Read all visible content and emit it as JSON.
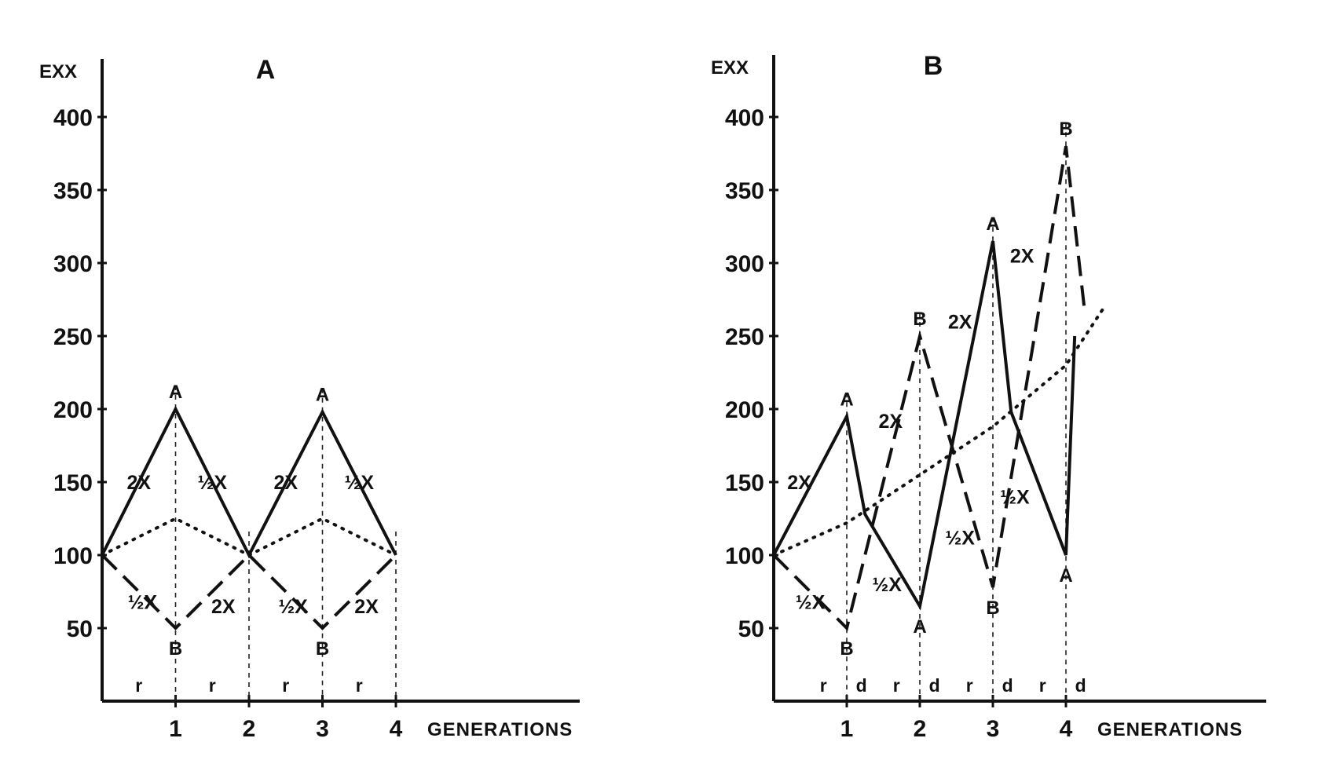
{
  "chart_data": [
    {
      "type": "line",
      "title": "A",
      "ylabel": "EXX",
      "xlabel": "GENERATIONS",
      "ylim": [
        0,
        400
      ],
      "y_ticks": [
        "400",
        "350",
        "300",
        "250",
        "200",
        "150",
        "100",
        "50"
      ],
      "x_ticks": [
        "1",
        "2",
        "3",
        "4"
      ],
      "phase_labels": [
        "r",
        "r",
        "r",
        "r"
      ],
      "series": [
        {
          "style": "solid",
          "x": [
            0,
            1,
            2,
            3,
            4
          ],
          "values": [
            100,
            200,
            100,
            198,
            100
          ]
        },
        {
          "style": "dashed",
          "x": [
            0,
            1,
            2,
            3,
            4
          ],
          "values": [
            100,
            50,
            100,
            50,
            100
          ]
        },
        {
          "style": "dotted",
          "x": [
            0,
            1,
            2,
            3,
            4
          ],
          "values": [
            100,
            125,
            100,
            125,
            100
          ]
        }
      ],
      "point_labels": [
        {
          "text": "A",
          "x": 1,
          "y": 200,
          "pos": "above"
        },
        {
          "text": "A",
          "x": 3,
          "y": 198,
          "pos": "above"
        },
        {
          "text": "B",
          "x": 1,
          "y": 50,
          "pos": "below"
        },
        {
          "text": "B",
          "x": 3,
          "y": 50,
          "pos": "below"
        }
      ],
      "segment_labels": [
        {
          "text": "2X",
          "x": 0.5,
          "y": 150
        },
        {
          "text": "½X",
          "x": 1.5,
          "y": 150
        },
        {
          "text": "2X",
          "x": 2.5,
          "y": 150
        },
        {
          "text": "½X",
          "x": 3.5,
          "y": 150
        },
        {
          "text": "½X",
          "x": 0.55,
          "y": 68
        },
        {
          "text": "2X",
          "x": 1.65,
          "y": 65
        },
        {
          "text": "½X",
          "x": 2.6,
          "y": 65
        },
        {
          "text": "2X",
          "x": 3.6,
          "y": 65
        }
      ]
    },
    {
      "type": "line",
      "title": "B",
      "ylabel": "EXX",
      "xlabel": "GENERATIONS",
      "ylim": [
        0,
        400
      ],
      "y_ticks": [
        "400",
        "350",
        "300",
        "250",
        "200",
        "150",
        "100",
        "50"
      ],
      "x_ticks": [
        "1",
        "2",
        "3",
        "4"
      ],
      "phase_labels": [
        "r",
        "d",
        "r",
        "d",
        "r",
        "d",
        "r",
        "d"
      ],
      "series": [
        {
          "style": "solid",
          "x": [
            0,
            1,
            1.25,
            2,
            3,
            3.25,
            4,
            4.12
          ],
          "values": [
            100,
            195,
            128,
            65,
            315,
            198,
            100,
            250
          ]
        },
        {
          "style": "dashed",
          "x": [
            0,
            1,
            2,
            3,
            4,
            4.25
          ],
          "values": [
            100,
            50,
            250,
            78,
            380,
            270
          ]
        },
        {
          "style": "dotted",
          "x": [
            0,
            1,
            2,
            3,
            4,
            4.5
          ],
          "values": [
            100,
            122,
            155,
            188,
            230,
            268
          ]
        }
      ],
      "point_labels": [
        {
          "text": "A",
          "x": 1,
          "y": 195,
          "pos": "above"
        },
        {
          "text": "B",
          "x": 1,
          "y": 50,
          "pos": "below"
        },
        {
          "text": "B",
          "x": 2,
          "y": 250,
          "pos": "above"
        },
        {
          "text": "A",
          "x": 2,
          "y": 65,
          "pos": "below"
        },
        {
          "text": "A",
          "x": 3,
          "y": 315,
          "pos": "above"
        },
        {
          "text": "B",
          "x": 3,
          "y": 78,
          "pos": "below"
        },
        {
          "text": "B",
          "x": 4,
          "y": 380,
          "pos": "above"
        },
        {
          "text": "A",
          "x": 4,
          "y": 100,
          "pos": "below"
        }
      ],
      "segment_labels": [
        {
          "text": "2X",
          "x": 0.35,
          "y": 150
        },
        {
          "text": "½X",
          "x": 0.5,
          "y": 68
        },
        {
          "text": "2X",
          "x": 1.6,
          "y": 192
        },
        {
          "text": "½X",
          "x": 1.55,
          "y": 80
        },
        {
          "text": "2X",
          "x": 2.55,
          "y": 260
        },
        {
          "text": "½X",
          "x": 2.55,
          "y": 112
        },
        {
          "text": "2X",
          "x": 3.4,
          "y": 305
        },
        {
          "text": "½X",
          "x": 3.3,
          "y": 140
        }
      ]
    }
  ]
}
